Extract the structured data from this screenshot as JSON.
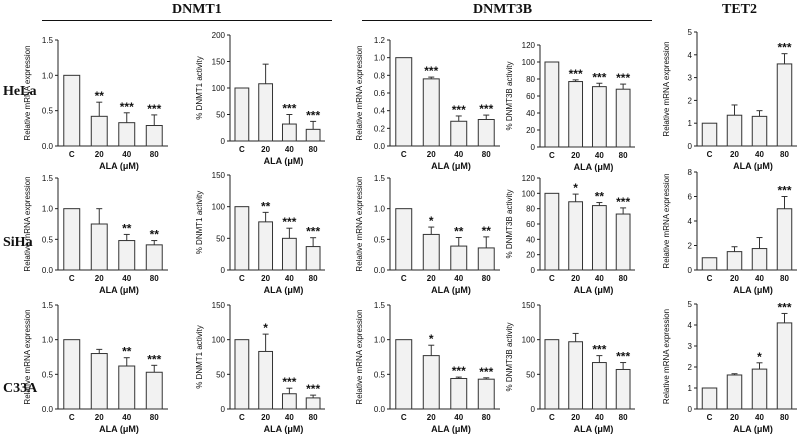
{
  "headers": {
    "dnmt1": "DNMT1",
    "dnmt3b": "DNMT3B",
    "tet2": "TET2"
  },
  "rows": {
    "hela": "HeLa",
    "siha": "SiHa",
    "c33a": "C33A"
  },
  "chart_data": [
    {
      "id": "hela-dnmt1-mrna",
      "type": "bar",
      "ylabel": "Relative mRNA expression",
      "xlabel": "ALA (μM)",
      "categories": [
        "C",
        "20",
        "40",
        "80"
      ],
      "yticks": [
        "0.0",
        "0.5",
        "1.0",
        "1.5"
      ],
      "ylim": [
        0,
        1.5
      ],
      "values": [
        1.0,
        0.42,
        0.33,
        0.29
      ],
      "errors": [
        0,
        0.2,
        0.14,
        0.15
      ],
      "sig": [
        "",
        "**",
        "***",
        "***"
      ]
    },
    {
      "id": "hela-dnmt1-act",
      "type": "bar",
      "ylabel": "% DNMT1 activity",
      "xlabel": "ALA (μM)",
      "categories": [
        "C",
        "20",
        "40",
        "80"
      ],
      "yticks": [
        "0",
        "50",
        "100",
        "150",
        "200"
      ],
      "ylim": [
        0,
        200
      ],
      "values": [
        100,
        108,
        32,
        22
      ],
      "errors": [
        0,
        37,
        18,
        15
      ],
      "sig": [
        "",
        "",
        "***",
        "***"
      ]
    },
    {
      "id": "hela-dnmt3b-mrna",
      "type": "bar",
      "ylabel": "Relative mRNA expression",
      "xlabel": "ALA (μM)",
      "categories": [
        "C",
        "20",
        "40",
        "80"
      ],
      "yticks": [
        "0.0",
        "0.2",
        "0.4",
        "0.6",
        "0.8",
        "1.0",
        "1.2"
      ],
      "ylim": [
        0,
        1.2
      ],
      "values": [
        1.0,
        0.76,
        0.28,
        0.3
      ],
      "errors": [
        0,
        0.02,
        0.06,
        0.05
      ],
      "sig": [
        "",
        "***",
        "***",
        "***"
      ]
    },
    {
      "id": "hela-dnmt3b-act",
      "type": "bar",
      "ylabel": "% DNMT3B activity",
      "xlabel": "ALA (μM)",
      "categories": [
        "C",
        "20",
        "40",
        "80"
      ],
      "yticks": [
        "0",
        "20",
        "40",
        "60",
        "80",
        "100",
        "120"
      ],
      "ylim": [
        0,
        120
      ],
      "values": [
        100,
        77,
        71,
        68
      ],
      "errors": [
        0,
        2,
        4,
        6
      ],
      "sig": [
        "",
        "***",
        "***",
        "***"
      ]
    },
    {
      "id": "hela-tet2-mrna",
      "type": "bar",
      "ylabel": "Relative mRNA expression",
      "xlabel": "ALA (μM)",
      "categories": [
        "C",
        "20",
        "40",
        "80"
      ],
      "yticks": [
        "0",
        "1",
        "2",
        "3",
        "4",
        "5"
      ],
      "ylim": [
        0,
        5
      ],
      "values": [
        1.0,
        1.35,
        1.3,
        3.6
      ],
      "errors": [
        0,
        0.45,
        0.25,
        0.45
      ],
      "sig": [
        "",
        "",
        "",
        "***"
      ]
    },
    {
      "id": "siha-dnmt1-mrna",
      "type": "bar",
      "ylabel": "Relative mRNA expression",
      "xlabel": "ALA (μM)",
      "categories": [
        "C",
        "20",
        "40",
        "80"
      ],
      "yticks": [
        "0.0",
        "0.5",
        "1.0",
        "1.5"
      ],
      "ylim": [
        0,
        1.5
      ],
      "values": [
        1.0,
        0.75,
        0.48,
        0.41
      ],
      "errors": [
        0,
        0.25,
        0.1,
        0.07
      ],
      "sig": [
        "",
        "",
        "**",
        "**"
      ]
    },
    {
      "id": "siha-dnmt1-act",
      "type": "bar",
      "ylabel": "% DNMT1 activity",
      "xlabel": "ALA (μM)",
      "categories": [
        "C",
        "20",
        "40",
        "80"
      ],
      "yticks": [
        "0",
        "50",
        "100",
        "150"
      ],
      "ylim": [
        0,
        150
      ],
      "values": [
        100,
        76,
        50,
        37
      ],
      "errors": [
        0,
        15,
        16,
        14
      ],
      "sig": [
        "",
        "**",
        "***",
        "***"
      ]
    },
    {
      "id": "siha-dnmt3b-mrna",
      "type": "bar",
      "ylabel": "Relative mRNA expression",
      "xlabel": "ALA (μM)",
      "categories": [
        "C",
        "20",
        "40",
        "80"
      ],
      "yticks": [
        "0.0",
        "0.5",
        "1.0",
        "1.5"
      ],
      "ylim": [
        0,
        1.5
      ],
      "values": [
        1.0,
        0.58,
        0.39,
        0.36
      ],
      "errors": [
        0,
        0.12,
        0.14,
        0.18
      ],
      "sig": [
        "",
        "*",
        "**",
        "**"
      ]
    },
    {
      "id": "siha-dnmt3b-act",
      "type": "bar",
      "ylabel": "% DNMT3B activity",
      "xlabel": "ALA (μM)",
      "categories": [
        "C",
        "20",
        "40",
        "80"
      ],
      "yticks": [
        "0",
        "20",
        "40",
        "60",
        "80",
        "100",
        "120"
      ],
      "ylim": [
        0,
        120
      ],
      "values": [
        100,
        89,
        84,
        73
      ],
      "errors": [
        0,
        10,
        4,
        8
      ],
      "sig": [
        "",
        "*",
        "**",
        "***"
      ]
    },
    {
      "id": "siha-tet2-mrna",
      "type": "bar",
      "ylabel": "Relative mRNA expression",
      "xlabel": "ALA (μM)",
      "categories": [
        "C",
        "20",
        "40",
        "80"
      ],
      "yticks": [
        "0",
        "2",
        "4",
        "6",
        "8"
      ],
      "ylim": [
        0,
        8
      ],
      "values": [
        1.0,
        1.5,
        1.75,
        5.0
      ],
      "errors": [
        0,
        0.4,
        0.9,
        1.0
      ],
      "sig": [
        "",
        "",
        "",
        "***"
      ]
    },
    {
      "id": "c33a-dnmt1-mrna",
      "type": "bar",
      "ylabel": "Relative mRNA expression",
      "xlabel": "ALA (μM)",
      "categories": [
        "C",
        "20",
        "40",
        "80"
      ],
      "yticks": [
        "0.0",
        "0.5",
        "1.0",
        "1.5"
      ],
      "ylim": [
        0,
        1.5
      ],
      "values": [
        1.0,
        0.8,
        0.62,
        0.53
      ],
      "errors": [
        0,
        0.06,
        0.12,
        0.1
      ],
      "sig": [
        "",
        "",
        "**",
        "***"
      ]
    },
    {
      "id": "c33a-dnmt1-act",
      "type": "bar",
      "ylabel": "% DNMT1 activity",
      "xlabel": "ALA (μM)",
      "categories": [
        "C",
        "20",
        "40",
        "80"
      ],
      "yticks": [
        "0",
        "50",
        "100",
        "150"
      ],
      "ylim": [
        0,
        150
      ],
      "values": [
        100,
        83,
        22,
        16
      ],
      "errors": [
        0,
        25,
        8,
        4
      ],
      "sig": [
        "",
        "*",
        "***",
        "***"
      ]
    },
    {
      "id": "c33a-dnmt3b-mrna",
      "type": "bar",
      "ylabel": "Relative mRNA expression",
      "xlabel": "ALA (μM)",
      "categories": [
        "C",
        "20",
        "40",
        "80"
      ],
      "yticks": [
        "0.0",
        "0.5",
        "1.0",
        "1.5"
      ],
      "ylim": [
        0,
        1.5
      ],
      "values": [
        1.0,
        0.77,
        0.44,
        0.43
      ],
      "errors": [
        0,
        0.15,
        0.02,
        0.02
      ],
      "sig": [
        "",
        "*",
        "***",
        "***"
      ]
    },
    {
      "id": "c33a-dnmt3b-act",
      "type": "bar",
      "ylabel": "% DNMT3B activity",
      "xlabel": "ALA (μM)",
      "categories": [
        "C",
        "20",
        "40",
        "80"
      ],
      "yticks": [
        "0",
        "50",
        "100",
        "150"
      ],
      "ylim": [
        0,
        150
      ],
      "values": [
        100,
        97,
        67,
        57
      ],
      "errors": [
        0,
        12,
        10,
        10
      ],
      "sig": [
        "",
        "",
        "***",
        "***"
      ]
    },
    {
      "id": "c33a-tet2-mrna",
      "type": "bar",
      "ylabel": "Relative mRNA expression",
      "xlabel": "ALA (μM)",
      "categories": [
        "C",
        "20",
        "40",
        "80"
      ],
      "yticks": [
        "0",
        "1",
        "2",
        "3",
        "4",
        "5"
      ],
      "ylim": [
        0,
        5
      ],
      "values": [
        1.0,
        1.62,
        1.9,
        4.1
      ],
      "errors": [
        0,
        0.06,
        0.3,
        0.45
      ],
      "sig": [
        "",
        "",
        "*",
        "***"
      ]
    }
  ]
}
